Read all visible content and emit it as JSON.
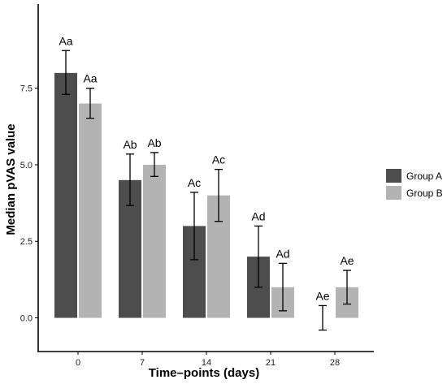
{
  "chart_data": {
    "type": "bar",
    "title": "",
    "xlabel": "Time–points (days)",
    "ylabel": "Median pVAS value",
    "categories": [
      "0",
      "7",
      "14",
      "21",
      "28"
    ],
    "ylim": [
      -1.1,
      10.25
    ],
    "yticks": [
      "0.0",
      "2.5",
      "5.0",
      "7.5"
    ],
    "ytick_values": [
      0,
      2.5,
      5,
      7.5
    ],
    "grid": false,
    "legend_position": "right",
    "series": [
      {
        "name": "Group A",
        "color": "#4d4d4d",
        "values": [
          8.0,
          4.5,
          3.0,
          2.0,
          0.0
        ],
        "err_low": [
          7.3,
          3.67,
          1.9,
          1.0,
          -0.4
        ],
        "err_high": [
          8.73,
          5.35,
          4.1,
          3.0,
          0.4
        ],
        "labels": [
          "Aa",
          "Ab",
          "Ac",
          "Ad",
          "Ae"
        ]
      },
      {
        "name": "Group B",
        "color": "#b3b3b3",
        "values": [
          7.0,
          5.0,
          4.0,
          1.0,
          1.0
        ],
        "err_low": [
          6.52,
          4.62,
          3.15,
          0.23,
          0.45
        ],
        "err_high": [
          7.5,
          5.4,
          4.85,
          1.78,
          1.55
        ],
        "labels": [
          "Aa",
          "Ab",
          "Ac",
          "Ad",
          "Ae"
        ]
      }
    ]
  }
}
